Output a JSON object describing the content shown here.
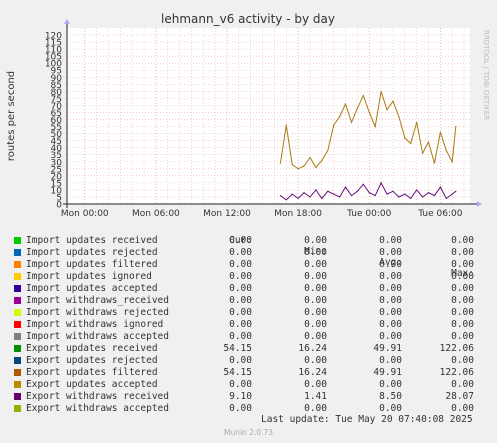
{
  "title": "lehmann_v6 activity - by day",
  "side_label": "RRDTOOL / TOBI OETIKER",
  "chart_data": {
    "type": "line",
    "title": "lehmann_v6 activity - by day",
    "ylabel": "routes per second",
    "ylim": [
      0,
      125
    ],
    "y_ticks": [
      0,
      5,
      10,
      15,
      20,
      25,
      30,
      35,
      40,
      45,
      50,
      55,
      60,
      65,
      70,
      75,
      80,
      85,
      90,
      95,
      100,
      105,
      110,
      115,
      120
    ],
    "x_ticks": [
      "Mon 00:00",
      "Mon 06:00",
      "Mon 12:00",
      "Mon 18:00",
      "Tue 00:00",
      "Tue 06:00"
    ],
    "grid": true,
    "series": [
      {
        "name": "Export updates filtered",
        "color": "#aa7a12",
        "x": [
          16.5,
          17.0,
          17.5,
          18.0,
          18.5,
          19.0,
          19.5,
          20.0,
          20.5,
          21.0,
          21.5,
          22.0,
          22.5,
          23.0,
          23.5,
          24.0,
          24.5,
          25.0,
          25.5,
          26.0,
          26.5,
          27.0,
          27.5,
          28.0,
          28.5,
          29.0,
          29.5,
          30.0,
          30.5,
          31.0,
          31.3
        ],
        "values": [
          29,
          56,
          28,
          25,
          27,
          33,
          26,
          31,
          38,
          56,
          62,
          71,
          58,
          68,
          77,
          65,
          55,
          80,
          67,
          73,
          62,
          47,
          43,
          58,
          36,
          44,
          29,
          51,
          38,
          30,
          55
        ]
      },
      {
        "name": "Export withdraws received",
        "color": "#66117a",
        "x": [
          16.5,
          17.0,
          17.5,
          18.0,
          18.5,
          19.0,
          19.5,
          20.0,
          20.5,
          21.0,
          21.5,
          22.0,
          22.5,
          23.0,
          23.5,
          24.0,
          24.5,
          25.0,
          25.5,
          26.0,
          26.5,
          27.0,
          27.5,
          28.0,
          28.5,
          29.0,
          29.5,
          30.0,
          30.5,
          31.0,
          31.3
        ],
        "values": [
          6,
          3,
          7,
          4,
          8,
          5,
          10,
          4,
          9,
          7,
          5,
          12,
          6,
          9,
          14,
          8,
          6,
          15,
          7,
          9,
          5,
          7,
          4,
          10,
          5,
          8,
          6,
          12,
          4,
          7,
          9
        ]
      }
    ]
  },
  "legend": {
    "headers": {
      "cur": "Cur:",
      "min": "Min:",
      "avg": "Avg:",
      "max": "Max:"
    },
    "rows": [
      {
        "label": "Import updates received",
        "color": "#00cc00",
        "cur": "0.00",
        "min": "0.00",
        "avg": "0.00",
        "max": "0.00"
      },
      {
        "label": "Import updates rejected",
        "color": "#0066b3",
        "cur": "0.00",
        "min": "0.00",
        "avg": "0.00",
        "max": "0.00"
      },
      {
        "label": "Import updates filtered",
        "color": "#ff8000",
        "cur": "0.00",
        "min": "0.00",
        "avg": "0.00",
        "max": "0.00"
      },
      {
        "label": "Import updates ignored",
        "color": "#ffcc00",
        "cur": "0.00",
        "min": "0.00",
        "avg": "0.00",
        "max": "0.00"
      },
      {
        "label": "Import updates accepted",
        "color": "#330099",
        "cur": "0.00",
        "min": "0.00",
        "avg": "0.00",
        "max": "0.00"
      },
      {
        "label": "Import withdraws_received",
        "color": "#990099",
        "cur": "0.00",
        "min": "0.00",
        "avg": "0.00",
        "max": "0.00"
      },
      {
        "label": "Import withdraws rejected",
        "color": "#ccff00",
        "cur": "0.00",
        "min": "0.00",
        "avg": "0.00",
        "max": "0.00"
      },
      {
        "label": "Import withdraws ignored",
        "color": "#ff0000",
        "cur": "0.00",
        "min": "0.00",
        "avg": "0.00",
        "max": "0.00"
      },
      {
        "label": "Import withdraws accepted",
        "color": "#808080",
        "cur": "0.00",
        "min": "0.00",
        "avg": "0.00",
        "max": "0.00"
      },
      {
        "label": "Export updates received",
        "color": "#008f00",
        "cur": "54.15",
        "min": "16.24",
        "avg": "49.91",
        "max": "122.06"
      },
      {
        "label": "Export updates rejected",
        "color": "#00487d",
        "cur": "0.00",
        "min": "0.00",
        "avg": "0.00",
        "max": "0.00"
      },
      {
        "label": "Export updates filtered",
        "color": "#b35a00",
        "cur": "54.15",
        "min": "16.24",
        "avg": "49.91",
        "max": "122.06"
      },
      {
        "label": "Export updates accepted",
        "color": "#b38f00",
        "cur": "0.00",
        "min": "0.00",
        "avg": "0.00",
        "max": "0.00"
      },
      {
        "label": "Export withdraws received",
        "color": "#6b006b",
        "cur": "9.10",
        "min": "1.41",
        "avg": "8.50",
        "max": "28.07"
      },
      {
        "label": "Export withdraws accepted",
        "color": "#8fb300",
        "cur": "0.00",
        "min": "0.00",
        "avg": "0.00",
        "max": "0.00"
      }
    ]
  },
  "last_update": "Last update: Tue May 20 07:40:08 2025",
  "munin_version": "Munin 2.0.73"
}
